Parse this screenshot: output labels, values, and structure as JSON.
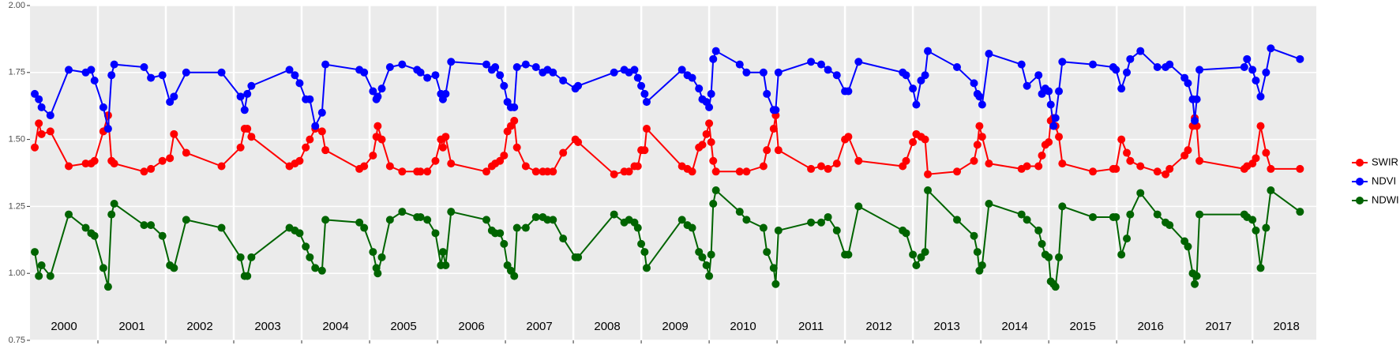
{
  "chart_data": {
    "type": "line",
    "x": [
      2000.07,
      2000.13,
      2000.17,
      2000.3,
      2000.57,
      2000.82,
      2000.9,
      2000.95,
      2001.08,
      2001.15,
      2001.2,
      2001.24,
      2001.68,
      2001.78,
      2001.95,
      2002.06,
      2002.12,
      2002.3,
      2002.82,
      2003.1,
      2003.16,
      2003.2,
      2003.26,
      2003.82,
      2003.9,
      2003.97,
      2004.06,
      2004.12,
      2004.2,
      2004.3,
      2004.35,
      2004.85,
      2004.92,
      2005.05,
      2005.1,
      2005.12,
      2005.18,
      2005.3,
      2005.48,
      2005.7,
      2005.75,
      2005.85,
      2005.97,
      2006.05,
      2006.08,
      2006.12,
      2006.2,
      2006.72,
      2006.8,
      2006.85,
      2006.92,
      2006.98,
      2007.03,
      2007.08,
      2007.13,
      2007.17,
      2007.3,
      2007.45,
      2007.55,
      2007.62,
      2007.7,
      2007.85,
      2008.03,
      2008.07,
      2008.6,
      2008.75,
      2008.82,
      2008.9,
      2008.95,
      2009,
      2009.05,
      2009.08,
      2009.6,
      2009.68,
      2009.75,
      2009.85,
      2009.9,
      2009.96,
      2010,
      2010.03,
      2010.06,
      2010.1,
      2010.45,
      2010.55,
      2010.8,
      2010.85,
      2010.95,
      2010.98,
      2011.02,
      2011.5,
      2011.65,
      2011.75,
      2011.88,
      2012,
      2012.05,
      2012.2,
      2012.85,
      2012.9,
      2013,
      2013.05,
      2013.12,
      2013.18,
      2013.22,
      2013.65,
      2013.9,
      2013.95,
      2013.98,
      2014.02,
      2014.12,
      2014.6,
      2014.68,
      2014.85,
      2014.9,
      2014.95,
      2015,
      2015.03,
      2015.07,
      2015.1,
      2015.15,
      2015.2,
      2015.65,
      2015.95,
      2015.99,
      2016.07,
      2016.15,
      2016.2,
      2016.35,
      2016.6,
      2016.72,
      2016.78,
      2017,
      2017.05,
      2017.12,
      2017.15,
      2017.18,
      2017.22,
      2017.88,
      2017.92,
      2018,
      2018.05,
      2018.12,
      2018.2,
      2018.27,
      2018.7
    ],
    "series": [
      {
        "name": "SWIR",
        "color": "#ff0000",
        "values": [
          1.47,
          1.56,
          1.52,
          1.53,
          1.4,
          1.41,
          1.41,
          1.42,
          1.53,
          1.59,
          1.42,
          1.41,
          1.38,
          1.39,
          1.42,
          1.43,
          1.52,
          1.45,
          1.4,
          1.47,
          1.54,
          1.54,
          1.51,
          1.4,
          1.41,
          1.42,
          1.47,
          1.5,
          1.54,
          1.53,
          1.46,
          1.39,
          1.4,
          1.44,
          1.51,
          1.55,
          1.5,
          1.4,
          1.38,
          1.38,
          1.38,
          1.38,
          1.42,
          1.5,
          1.47,
          1.51,
          1.41,
          1.38,
          1.4,
          1.41,
          1.42,
          1.44,
          1.53,
          1.55,
          1.57,
          1.47,
          1.4,
          1.38,
          1.38,
          1.38,
          1.38,
          1.45,
          1.5,
          1.49,
          1.37,
          1.38,
          1.38,
          1.4,
          1.4,
          1.46,
          1.46,
          1.54,
          1.4,
          1.39,
          1.38,
          1.47,
          1.48,
          1.52,
          1.56,
          1.49,
          1.42,
          1.38,
          1.38,
          1.38,
          1.4,
          1.46,
          1.54,
          1.59,
          1.46,
          1.39,
          1.4,
          1.39,
          1.41,
          1.5,
          1.51,
          1.42,
          1.4,
          1.42,
          1.49,
          1.52,
          1.51,
          1.5,
          1.37,
          1.38,
          1.42,
          1.48,
          1.55,
          1.51,
          1.41,
          1.39,
          1.4,
          1.4,
          1.44,
          1.48,
          1.49,
          1.57,
          1.58,
          1.55,
          1.51,
          1.41,
          1.38,
          1.39,
          1.39,
          1.5,
          1.45,
          1.42,
          1.4,
          1.38,
          1.37,
          1.39,
          1.44,
          1.46,
          1.55,
          1.58,
          1.55,
          1.42,
          1.39,
          1.4,
          1.41,
          1.43,
          1.55,
          1.45,
          1.39,
          1.39
        ]
      },
      {
        "name": "NDVI",
        "color": "#0000ff",
        "values": [
          1.67,
          1.65,
          1.62,
          1.59,
          1.76,
          1.75,
          1.76,
          1.72,
          1.62,
          1.54,
          1.74,
          1.78,
          1.77,
          1.73,
          1.74,
          1.64,
          1.66,
          1.75,
          1.75,
          1.66,
          1.61,
          1.67,
          1.7,
          1.76,
          1.74,
          1.71,
          1.65,
          1.65,
          1.55,
          1.6,
          1.78,
          1.76,
          1.75,
          1.68,
          1.65,
          1.66,
          1.69,
          1.77,
          1.78,
          1.76,
          1.75,
          1.73,
          1.74,
          1.67,
          1.65,
          1.67,
          1.79,
          1.78,
          1.76,
          1.77,
          1.74,
          1.7,
          1.64,
          1.62,
          1.62,
          1.77,
          1.78,
          1.77,
          1.75,
          1.76,
          1.75,
          1.72,
          1.69,
          1.7,
          1.75,
          1.76,
          1.75,
          1.76,
          1.73,
          1.7,
          1.67,
          1.64,
          1.76,
          1.74,
          1.73,
          1.69,
          1.65,
          1.64,
          1.62,
          1.67,
          1.8,
          1.83,
          1.78,
          1.75,
          1.75,
          1.67,
          1.61,
          1.61,
          1.75,
          1.79,
          1.78,
          1.76,
          1.74,
          1.68,
          1.68,
          1.79,
          1.75,
          1.74,
          1.69,
          1.63,
          1.72,
          1.74,
          1.83,
          1.77,
          1.71,
          1.67,
          1.66,
          1.63,
          1.82,
          1.78,
          1.7,
          1.74,
          1.67,
          1.69,
          1.68,
          1.63,
          1.55,
          1.58,
          1.68,
          1.79,
          1.78,
          1.77,
          1.76,
          1.69,
          1.75,
          1.8,
          1.83,
          1.77,
          1.77,
          1.78,
          1.73,
          1.71,
          1.65,
          1.57,
          1.65,
          1.76,
          1.77,
          1.8,
          1.76,
          1.72,
          1.66,
          1.75,
          1.84,
          1.8
        ]
      },
      {
        "name": "NDWI",
        "color": "#006400",
        "values": [
          1.08,
          0.99,
          1.03,
          0.99,
          1.22,
          1.17,
          1.15,
          1.14,
          1.02,
          0.95,
          1.22,
          1.26,
          1.18,
          1.18,
          1.14,
          1.03,
          1.02,
          1.2,
          1.17,
          1.06,
          0.99,
          0.99,
          1.06,
          1.17,
          1.16,
          1.15,
          1.1,
          1.06,
          1.02,
          1.01,
          1.2,
          1.19,
          1.17,
          1.08,
          1.02,
          1.0,
          1.06,
          1.2,
          1.23,
          1.21,
          1.21,
          1.2,
          1.15,
          1.03,
          1.08,
          1.03,
          1.23,
          1.2,
          1.16,
          1.15,
          1.15,
          1.11,
          1.03,
          1.01,
          0.99,
          1.17,
          1.17,
          1.21,
          1.21,
          1.2,
          1.2,
          1.13,
          1.06,
          1.06,
          1.22,
          1.19,
          1.2,
          1.19,
          1.17,
          1.11,
          1.08,
          1.02,
          1.2,
          1.18,
          1.17,
          1.08,
          1.06,
          1.03,
          0.99,
          1.07,
          1.26,
          1.31,
          1.23,
          1.2,
          1.17,
          1.08,
          1.02,
          0.96,
          1.16,
          1.19,
          1.19,
          1.21,
          1.16,
          1.07,
          1.07,
          1.25,
          1.16,
          1.15,
          1.07,
          1.03,
          1.06,
          1.08,
          1.31,
          1.2,
          1.14,
          1.08,
          1.01,
          1.03,
          1.26,
          1.22,
          1.2,
          1.16,
          1.11,
          1.07,
          1.06,
          0.97,
          0.96,
          0.95,
          1.06,
          1.25,
          1.21,
          1.21,
          1.21,
          1.07,
          1.13,
          1.22,
          1.3,
          1.22,
          1.19,
          1.18,
          1.12,
          1.1,
          1.0,
          0.96,
          0.99,
          1.22,
          1.22,
          1.21,
          1.2,
          1.16,
          1.02,
          1.17,
          1.31,
          1.23
        ]
      }
    ],
    "xlim": [
      2000,
      2018.94
    ],
    "xticks": [
      2001,
      2002,
      2003,
      2004,
      2005,
      2006,
      2007,
      2008,
      2009,
      2010,
      2011,
      2012,
      2013,
      2014,
      2015,
      2016,
      2017,
      2018
    ],
    "year_labels": [
      "2000",
      "2001",
      "2002",
      "2003",
      "2004",
      "2005",
      "2006",
      "2007",
      "2008",
      "2009",
      "2010",
      "2011",
      "2012",
      "2013",
      "2014",
      "2015",
      "2016",
      "2017",
      "2018"
    ],
    "ylim": [
      0.75,
      2.0
    ],
    "yticks": [
      0.75,
      {
        "value": 1,
        "label": "1.00"
      },
      1.25,
      {
        "value": 1.5,
        "label": "1.50"
      },
      1.75,
      {
        "value": 2,
        "label": "2.00"
      }
    ],
    "grid": true
  }
}
